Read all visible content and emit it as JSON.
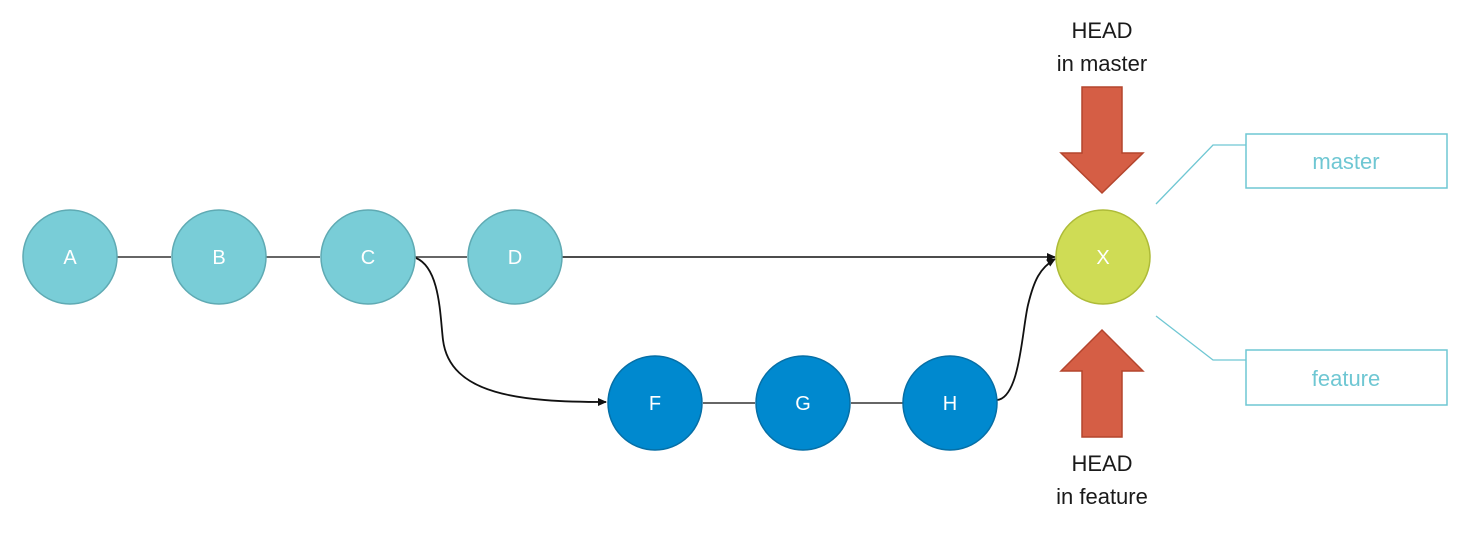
{
  "colors": {
    "master_commit": "#79CDD7",
    "master_commit_stroke": "#5FAAB3",
    "feature_commit": "#0089CF",
    "feature_commit_stroke": "#066FA6",
    "merge_commit": "#CFDC55",
    "merge_commit_stroke": "#AEBB38",
    "head_arrow": "#D55E45",
    "head_arrow_stroke": "#B4452D",
    "branch_label": "#6FC7D3",
    "edge": "#333333"
  },
  "commits": {
    "a": "A",
    "b": "B",
    "c": "C",
    "d": "D",
    "f": "F",
    "g": "G",
    "h": "H",
    "x": "X"
  },
  "head_master": {
    "line1": "HEAD",
    "line2": "in master"
  },
  "head_feature": {
    "line1": "HEAD",
    "line2": "in feature"
  },
  "branches": {
    "master": "master",
    "feature": "feature"
  }
}
